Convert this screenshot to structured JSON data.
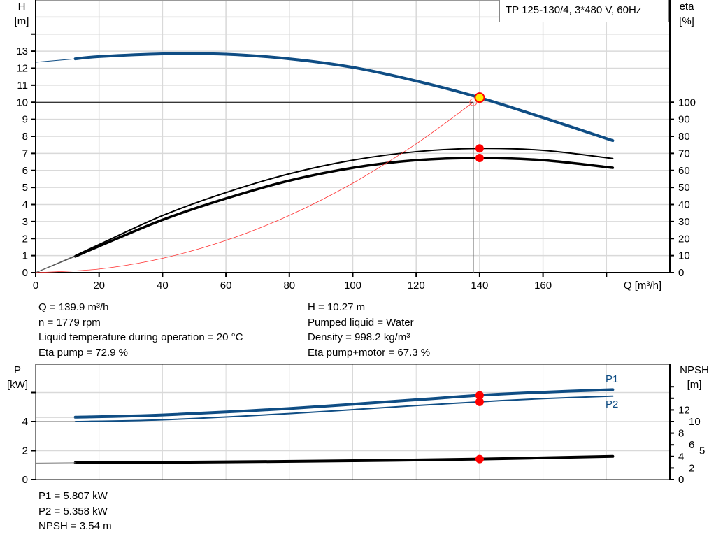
{
  "chart_data": [
    {
      "type": "line",
      "title": "TP 125-130/4, 3*480 V, 60Hz",
      "xlabel": "Q [m³/h]",
      "ylabel": [
        "H",
        "[m]"
      ],
      "y2label": [
        "eta",
        "[%]"
      ],
      "xlim": [
        0,
        200
      ],
      "ylim": [
        0,
        16
      ],
      "y2lim": [
        0,
        160
      ],
      "x_ticks": [
        0,
        20,
        40,
        60,
        80,
        100,
        120,
        140,
        160
      ],
      "y_ticks": [
        0,
        1,
        2,
        3,
        4,
        5,
        6,
        7,
        8,
        9,
        10,
        11,
        12,
        13
      ],
      "y2_ticks": [
        0,
        10,
        20,
        30,
        40,
        50,
        60,
        70,
        80,
        90,
        100
      ],
      "grid": true,
      "series": [
        {
          "id": "head",
          "axis": "H",
          "color": "#0f4d84",
          "x": [
            12.5,
            20,
            40,
            60,
            80,
            100,
            120,
            140,
            160,
            182
          ],
          "y": [
            12.55,
            12.68,
            12.84,
            12.82,
            12.55,
            12.05,
            11.25,
            10.27,
            9.1,
            7.75
          ],
          "extension": {
            "x": [
              0,
              12.5
            ],
            "y": [
              12.35,
              12.55
            ]
          }
        },
        {
          "id": "eta-pump",
          "axis": "eta",
          "color": "#000000",
          "x": [
            12.5,
            20,
            40,
            60,
            80,
            100,
            120,
            140,
            160,
            182
          ],
          "y": [
            10,
            16.5,
            33.5,
            47,
            58,
            66,
            71,
            72.9,
            71.8,
            67
          ]
        },
        {
          "id": "eta-pump-motor",
          "axis": "eta",
          "color": "#000000",
          "x": [
            12.5,
            20,
            40,
            60,
            80,
            100,
            120,
            140,
            160,
            182
          ],
          "y": [
            9.5,
            15.5,
            31,
            43.5,
            54,
            61.5,
            66,
            67.3,
            66,
            61.5
          ]
        },
        {
          "id": "system-curve",
          "axis": "H",
          "color": "#ff3030",
          "x": [
            0,
            20,
            40,
            60,
            80,
            100,
            120,
            138
          ],
          "y": [
            0,
            0.21,
            0.84,
            1.89,
            3.36,
            5.25,
            7.56,
            10
          ]
        }
      ],
      "duty_point": {
        "q": 139.9,
        "h": 10.27,
        "eta_pump": 72.9,
        "eta_total": 67.3,
        "system_q": 138,
        "system_h": 10
      },
      "readout": {
        "left": [
          "Q = 139.9 m³/h",
          "n = 1779 rpm",
          "Liquid temperature during operation = 20 °C",
          "Eta pump = 72.9 %"
        ],
        "right": [
          "H = 10.27 m",
          "Pumped liquid = Water",
          "Density = 998.2 kg/m³",
          "Eta pump+motor = 67.3 %"
        ]
      }
    },
    {
      "type": "line",
      "ylabel": [
        "P",
        "[kW]"
      ],
      "y2label": [
        "NPSH",
        "[m]"
      ],
      "xlim": [
        0,
        200
      ],
      "ylim": [
        0,
        7.5
      ],
      "y2lim": [
        0,
        18.75
      ],
      "y_ticks": [
        0,
        2,
        4
      ],
      "y2_ticks": [
        0,
        2,
        4,
        5,
        6,
        8,
        10,
        12
      ],
      "grid": true,
      "series": [
        {
          "id": "P1",
          "name": "P1",
          "axis": "P",
          "color": "#0f4d84",
          "x": [
            12.5,
            40,
            80,
            120,
            140,
            160,
            182
          ],
          "y": [
            4.3,
            4.45,
            4.9,
            5.5,
            5.807,
            6.02,
            6.2
          ],
          "extension": {
            "x": [
              0,
              12.5
            ],
            "y": [
              4.3,
              4.3
            ]
          }
        },
        {
          "id": "P2",
          "name": "P2",
          "axis": "P",
          "color": "#0f4d84",
          "x": [
            12.5,
            40,
            80,
            120,
            140,
            160,
            182
          ],
          "y": [
            4.0,
            4.12,
            4.55,
            5.1,
            5.358,
            5.58,
            5.75
          ],
          "extension": {
            "x": [
              0,
              12.5
            ],
            "y": [
              4.0,
              4.0
            ]
          }
        },
        {
          "id": "NPSH",
          "axis": "NPSH",
          "color": "#000000",
          "x": [
            12.5,
            60,
            100,
            140,
            182
          ],
          "y": [
            2.9,
            3.05,
            3.25,
            3.54,
            4.0
          ],
          "extension": {
            "x": [
              0,
              12.5
            ],
            "y": [
              2.85,
              2.9
            ]
          }
        }
      ],
      "duty_point": {
        "q": 139.9,
        "p1": 5.807,
        "p2": 5.358,
        "npsh": 3.54
      },
      "readout": [
        "P1 = 5.807 kW",
        "P2 = 5.358 kW",
        "NPSH = 3.54 m"
      ]
    }
  ],
  "colors": {
    "curve_blue": "#0f4d84",
    "marker_red": "#ff0000",
    "duty_yellow": "#ffee00",
    "grid": "#d9d9d9"
  }
}
